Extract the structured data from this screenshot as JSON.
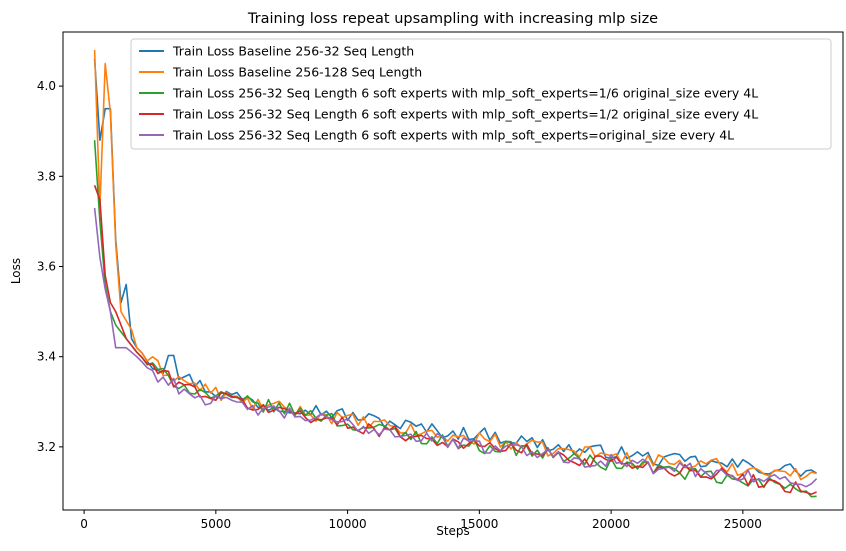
{
  "chart_data": {
    "type": "line",
    "title": "Training loss repeat upsampling with increasing mlp size",
    "xlabel": "Steps",
    "ylabel": "Loss",
    "xlim": [
      -800,
      28800
    ],
    "ylim": [
      3.06,
      4.12
    ],
    "x_ticks": [
      0,
      5000,
      10000,
      15000,
      20000,
      25000
    ],
    "y_ticks": [
      3.2,
      3.4,
      3.6,
      3.8,
      4.0
    ],
    "x_tick_labels": [
      "0",
      "5000",
      "10000",
      "15000",
      "20000",
      "25000"
    ],
    "y_tick_labels": [
      "3.2",
      "3.4",
      "3.6",
      "3.8",
      "4.0"
    ],
    "grid": false,
    "legend_position": "top-right",
    "series": [
      {
        "name": "Train Loss Baseline 256-32 Seq Length",
        "color": "#1f77b4",
        "anchors": [
          [
            400,
            4.06
          ],
          [
            600,
            3.88
          ],
          [
            800,
            3.95
          ],
          [
            1000,
            3.95
          ],
          [
            1200,
            3.66
          ],
          [
            1400,
            3.52
          ],
          [
            1600,
            3.56
          ],
          [
            1800,
            3.44
          ],
          [
            2000,
            3.42
          ],
          [
            2500,
            3.39
          ],
          [
            3000,
            3.37
          ],
          [
            3300,
            3.44
          ],
          [
            3600,
            3.36
          ],
          [
            4000,
            3.35
          ],
          [
            5000,
            3.32
          ],
          [
            6000,
            3.31
          ],
          [
            7000,
            3.29
          ],
          [
            8000,
            3.29
          ],
          [
            9000,
            3.28
          ],
          [
            10000,
            3.27
          ],
          [
            11000,
            3.26
          ],
          [
            12000,
            3.25
          ],
          [
            13000,
            3.24
          ],
          [
            14000,
            3.23
          ],
          [
            15000,
            3.23
          ],
          [
            16000,
            3.22
          ],
          [
            17000,
            3.21
          ],
          [
            18000,
            3.2
          ],
          [
            19000,
            3.19
          ],
          [
            20000,
            3.19
          ],
          [
            21000,
            3.18
          ],
          [
            22000,
            3.17
          ],
          [
            23000,
            3.17
          ],
          [
            24000,
            3.16
          ],
          [
            25000,
            3.16
          ],
          [
            26000,
            3.15
          ],
          [
            27000,
            3.15
          ],
          [
            27800,
            3.14
          ]
        ]
      },
      {
        "name": "Train Loss Baseline 256-128 Seq Length",
        "color": "#ff7f0e",
        "anchors": [
          [
            400,
            4.08
          ],
          [
            600,
            3.73
          ],
          [
            800,
            4.05
          ],
          [
            1000,
            3.94
          ],
          [
            1200,
            3.65
          ],
          [
            1400,
            3.5
          ],
          [
            1600,
            3.48
          ],
          [
            1800,
            3.46
          ],
          [
            2000,
            3.42
          ],
          [
            2500,
            3.39
          ],
          [
            3000,
            3.37
          ],
          [
            4000,
            3.34
          ],
          [
            5000,
            3.32
          ],
          [
            6000,
            3.3
          ],
          [
            7000,
            3.29
          ],
          [
            8000,
            3.28
          ],
          [
            9000,
            3.27
          ],
          [
            10000,
            3.26
          ],
          [
            11000,
            3.25
          ],
          [
            12000,
            3.24
          ],
          [
            13000,
            3.23
          ],
          [
            14000,
            3.22
          ],
          [
            15000,
            3.22
          ],
          [
            16000,
            3.21
          ],
          [
            17000,
            3.2
          ],
          [
            18000,
            3.19
          ],
          [
            19000,
            3.19
          ],
          [
            20000,
            3.18
          ],
          [
            21000,
            3.17
          ],
          [
            22000,
            3.17
          ],
          [
            23000,
            3.16
          ],
          [
            24000,
            3.16
          ],
          [
            25000,
            3.15
          ],
          [
            26000,
            3.15
          ],
          [
            27000,
            3.14
          ],
          [
            27800,
            3.13
          ]
        ]
      },
      {
        "name": "Train Loss 256-32 Seq Length 6 soft experts with mlp_soft_experts=1/6 original_size every 4L",
        "color": "#2ca02c",
        "anchors": [
          [
            400,
            3.88
          ],
          [
            600,
            3.7
          ],
          [
            800,
            3.56
          ],
          [
            1000,
            3.5
          ],
          [
            1200,
            3.47
          ],
          [
            1600,
            3.44
          ],
          [
            2000,
            3.41
          ],
          [
            2500,
            3.38
          ],
          [
            3000,
            3.36
          ],
          [
            4000,
            3.33
          ],
          [
            5000,
            3.31
          ],
          [
            6000,
            3.3
          ],
          [
            7000,
            3.29
          ],
          [
            8000,
            3.28
          ],
          [
            9000,
            3.27
          ],
          [
            10000,
            3.25
          ],
          [
            11000,
            3.24
          ],
          [
            12000,
            3.23
          ],
          [
            13000,
            3.22
          ],
          [
            14000,
            3.21
          ],
          [
            15000,
            3.2
          ],
          [
            16000,
            3.2
          ],
          [
            17000,
            3.19
          ],
          [
            18000,
            3.18
          ],
          [
            19000,
            3.17
          ],
          [
            20000,
            3.16
          ],
          [
            21000,
            3.16
          ],
          [
            22000,
            3.15
          ],
          [
            23000,
            3.14
          ],
          [
            24000,
            3.13
          ],
          [
            25000,
            3.12
          ],
          [
            26000,
            3.12
          ],
          [
            27000,
            3.11
          ],
          [
            27800,
            3.1
          ]
        ]
      },
      {
        "name": "Train Loss 256-32 Seq Length 6 soft experts with mlp_soft_experts=1/2 original_size every 4L",
        "color": "#d62728",
        "anchors": [
          [
            400,
            3.78
          ],
          [
            550,
            3.79
          ],
          [
            800,
            3.58
          ],
          [
            1000,
            3.52
          ],
          [
            1200,
            3.5
          ],
          [
            1400,
            3.47
          ],
          [
            1600,
            3.44
          ],
          [
            2000,
            3.41
          ],
          [
            2500,
            3.38
          ],
          [
            3000,
            3.36
          ],
          [
            4000,
            3.33
          ],
          [
            5000,
            3.31
          ],
          [
            6000,
            3.3
          ],
          [
            7000,
            3.28
          ],
          [
            8000,
            3.28
          ],
          [
            9000,
            3.26
          ],
          [
            10000,
            3.25
          ],
          [
            11000,
            3.24
          ],
          [
            12000,
            3.23
          ],
          [
            13000,
            3.22
          ],
          [
            14000,
            3.21
          ],
          [
            15000,
            3.2
          ],
          [
            16000,
            3.2
          ],
          [
            17000,
            3.19
          ],
          [
            18000,
            3.18
          ],
          [
            19000,
            3.17
          ],
          [
            20000,
            3.17
          ],
          [
            21000,
            3.16
          ],
          [
            22000,
            3.15
          ],
          [
            23000,
            3.15
          ],
          [
            24000,
            3.14
          ],
          [
            25000,
            3.13
          ],
          [
            26000,
            3.12
          ],
          [
            27000,
            3.11
          ],
          [
            27800,
            3.1
          ]
        ]
      },
      {
        "name": "Train Loss 256-32 Seq Length 6 soft experts with mlp_soft_experts=original_size every 4L",
        "color": "#9467bd",
        "anchors": [
          [
            400,
            3.73
          ],
          [
            600,
            3.62
          ],
          [
            800,
            3.55
          ],
          [
            1000,
            3.5
          ],
          [
            1200,
            3.42
          ],
          [
            1600,
            3.42
          ],
          [
            2000,
            3.4
          ],
          [
            2500,
            3.37
          ],
          [
            3000,
            3.35
          ],
          [
            4000,
            3.32
          ],
          [
            5000,
            3.3
          ],
          [
            6000,
            3.29
          ],
          [
            7000,
            3.28
          ],
          [
            8000,
            3.27
          ],
          [
            9000,
            3.26
          ],
          [
            10000,
            3.25
          ],
          [
            11000,
            3.24
          ],
          [
            12000,
            3.23
          ],
          [
            13000,
            3.22
          ],
          [
            14000,
            3.21
          ],
          [
            15000,
            3.2
          ],
          [
            16000,
            3.2
          ],
          [
            17000,
            3.19
          ],
          [
            18000,
            3.18
          ],
          [
            19000,
            3.17
          ],
          [
            20000,
            3.17
          ],
          [
            21000,
            3.16
          ],
          [
            22000,
            3.15
          ],
          [
            23000,
            3.15
          ],
          [
            24000,
            3.14
          ],
          [
            25000,
            3.14
          ],
          [
            26000,
            3.13
          ],
          [
            27000,
            3.12
          ],
          [
            27800,
            3.12
          ]
        ]
      }
    ]
  }
}
